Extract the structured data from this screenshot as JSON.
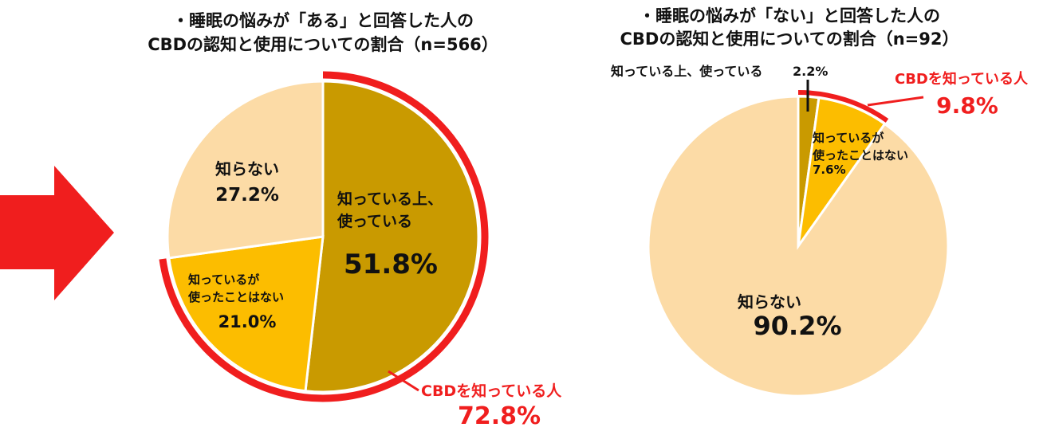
{
  "colors": {
    "dark_gold": "#c99a00",
    "yellow": "#fcbd00",
    "peach": "#fcdba6",
    "red": "#f01e1e",
    "text": "#111111"
  },
  "arrow": {
    "icon": "right-arrow-icon"
  },
  "chart_data": [
    {
      "type": "pie",
      "title_line1": "・睡眠の悩みが「ある」と回答した人の",
      "title_line2": "CBDの認知と使用についての割合（n=566）",
      "slices": [
        {
          "label_line1": "知っている上、",
          "label_line2": "使っている",
          "value": 51.8,
          "value_label": "51.8%",
          "color": "#c99a00"
        },
        {
          "label_line1": "知っているが",
          "label_line2": "使ったことはない",
          "value": 21.0,
          "value_label": "21.0%",
          "color": "#fcbd00"
        },
        {
          "label_line1": "知らない",
          "label_line2": "",
          "value": 27.2,
          "value_label": "27.2%",
          "color": "#fcdba6"
        }
      ],
      "aware_label": "CBDを知っている人",
      "aware_value": 72.8,
      "aware_value_label": "72.8%"
    },
    {
      "type": "pie",
      "title_line1": "・睡眠の悩みが「ない」と回答した人の",
      "title_line2": "CBDの認知と使用についての割合（n=92）",
      "slices": [
        {
          "label_line1": "知っている上、使っている",
          "label_line2": "",
          "value": 2.2,
          "value_label": "2.2%",
          "color": "#c99a00"
        },
        {
          "label_line1": "知っているが",
          "label_line2": "使ったことはない",
          "value": 7.6,
          "value_label": "7.6%",
          "color": "#fcbd00"
        },
        {
          "label_line1": "知らない",
          "label_line2": "",
          "value": 90.2,
          "value_label": "90.2%",
          "color": "#fcdba6"
        }
      ],
      "aware_label": "CBDを知っている人",
      "aware_value": 9.8,
      "aware_value_label": "9.8%"
    }
  ]
}
